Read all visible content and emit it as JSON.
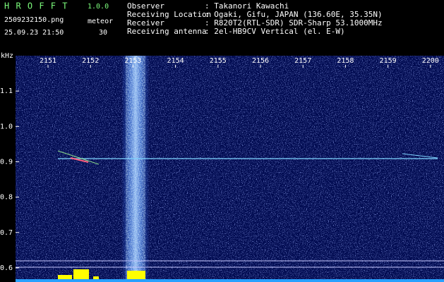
{
  "header": {
    "app": "H R O F F T",
    "version": "1.0.0",
    "file": "2509232150.png",
    "mode": "meteor",
    "datetime": "25.09.23 21:50",
    "count": "30",
    "fields": [
      {
        "label": "Observer",
        "value": ": Takanori Kawachi"
      },
      {
        "label": "Receiving Location",
        "value": ": Ogaki, Gifu, JAPAN (136.60E, 35.35N)"
      },
      {
        "label": "Receiver",
        "value": ": R820T2(RTL-SDR) SDR-Sharp 53.1000MHz"
      },
      {
        "label": "Receiving antenna",
        "value": ": 2el-HB9CV Vertical (el. E-W)"
      }
    ]
  },
  "chart_data": {
    "type": "spectrogram",
    "y_label": "kHz",
    "categories": [
      "2151",
      "2152",
      "2153",
      "2154",
      "2155",
      "2156",
      "2157",
      "2158",
      "2159",
      "2200"
    ],
    "ylim": [
      0.56,
      1.2
    ],
    "yticks": [
      0.6,
      0.7,
      0.8,
      0.9,
      {
        "value": 1,
        "label": "1.0"
      },
      1.1
    ]
  }
}
